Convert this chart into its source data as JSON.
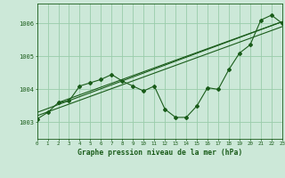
{
  "background_color": "#cce8d8",
  "grid_color": "#99ccaa",
  "line_color": "#1a5c1a",
  "title": "Graphe pression niveau de la mer (hPa)",
  "xlim": [
    0,
    23
  ],
  "ylim": [
    1002.5,
    1006.6
  ],
  "yticks": [
    1003,
    1004,
    1005,
    1006
  ],
  "xticks": [
    0,
    1,
    2,
    3,
    4,
    5,
    6,
    7,
    8,
    9,
    10,
    11,
    12,
    13,
    14,
    15,
    16,
    17,
    18,
    19,
    20,
    21,
    22,
    23
  ],
  "main_line": [
    [
      0,
      1003.1
    ],
    [
      1,
      1003.3
    ],
    [
      2,
      1003.6
    ],
    [
      3,
      1003.65
    ],
    [
      4,
      1004.1
    ],
    [
      5,
      1004.2
    ],
    [
      6,
      1004.3
    ],
    [
      7,
      1004.45
    ],
    [
      8,
      1004.25
    ],
    [
      9,
      1004.1
    ],
    [
      10,
      1003.95
    ],
    [
      11,
      1004.1
    ],
    [
      12,
      1003.4
    ],
    [
      13,
      1003.15
    ],
    [
      14,
      1003.15
    ],
    [
      15,
      1003.5
    ],
    [
      16,
      1004.05
    ],
    [
      17,
      1004.0
    ],
    [
      18,
      1004.6
    ],
    [
      19,
      1005.1
    ],
    [
      20,
      1005.35
    ],
    [
      21,
      1006.1
    ],
    [
      22,
      1006.25
    ],
    [
      23,
      1006.0
    ]
  ],
  "trend_lines": [
    [
      [
        0,
        1003.2
      ],
      [
        23,
        1005.9
      ]
    ],
    [
      [
        0,
        1003.3
      ],
      [
        23,
        1006.05
      ]
    ],
    [
      [
        2,
        1003.6
      ],
      [
        23,
        1006.05
      ]
    ]
  ]
}
